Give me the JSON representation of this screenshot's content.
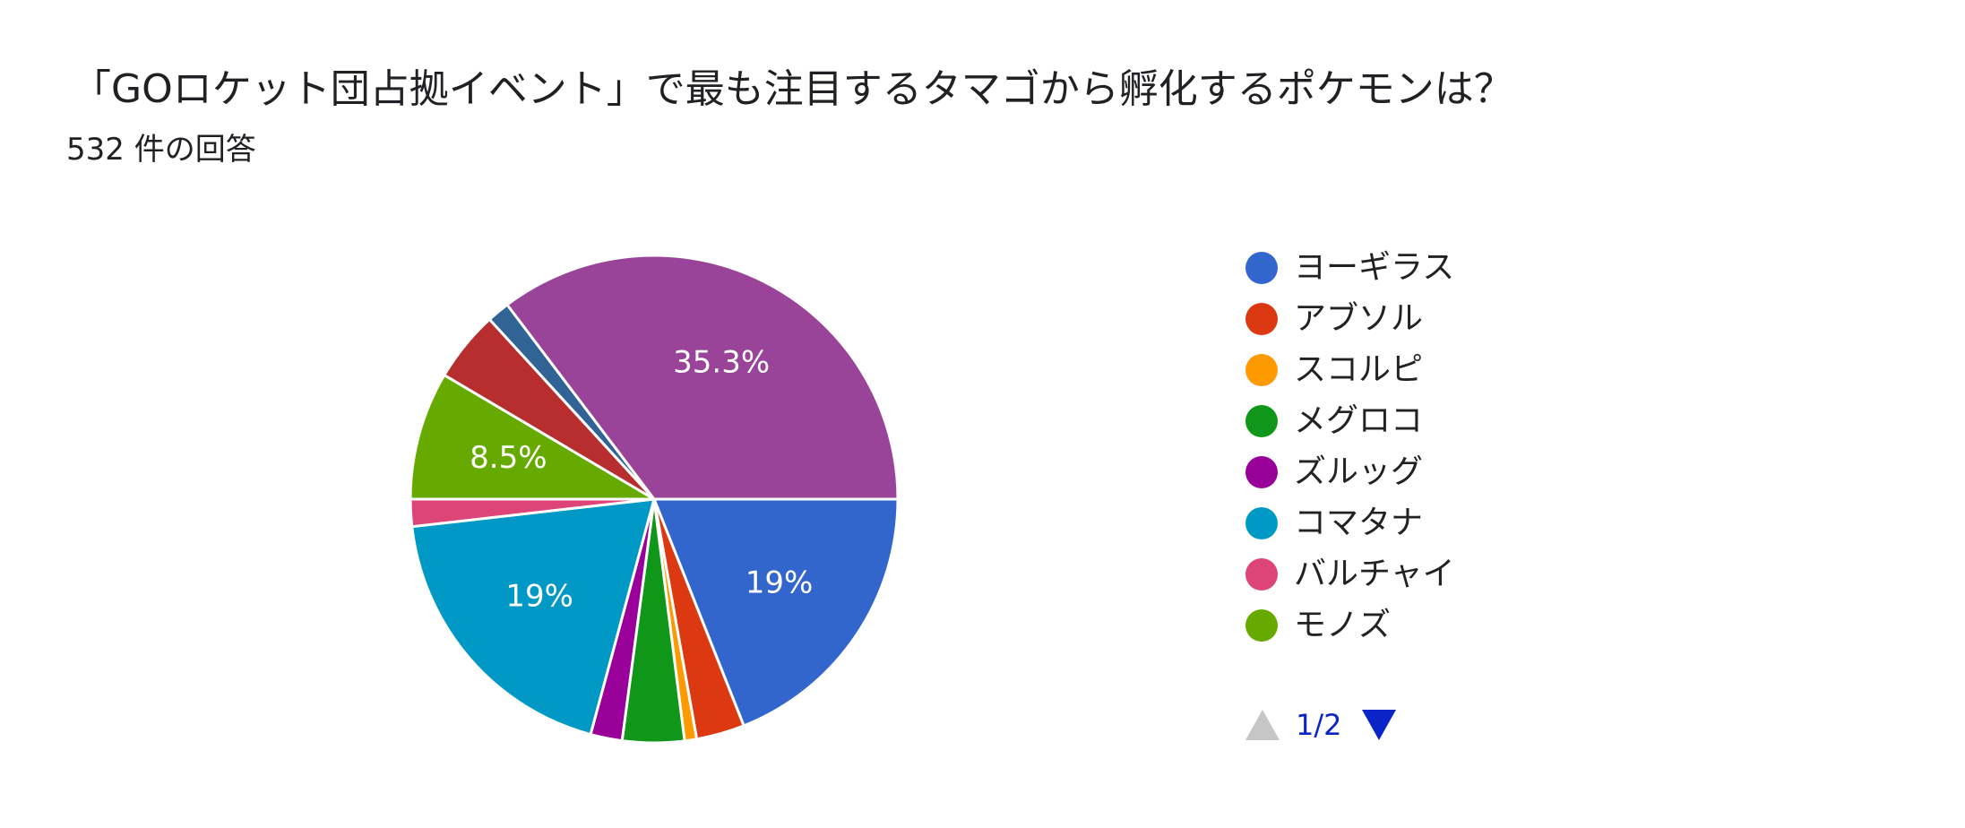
{
  "header": {
    "title": "「GOロケット団占拠イベント」で最も注目するタマゴから孵化するポケモンは？",
    "response_count": "532 件の回答"
  },
  "chart_data": {
    "type": "pie",
    "title": "「GOロケット団占拠イベント」で最も注目するタマゴから孵化するポケモンは？",
    "subtitle": "532 件の回答",
    "legend_position": "right",
    "legend_page": "1/2",
    "slices": [
      {
        "name": "ヨーギラス",
        "percent": 19.0,
        "label": "19%",
        "color": "#3366cc"
      },
      {
        "name": "アブソル",
        "percent": 3.2,
        "label": "",
        "color": "#dc3912"
      },
      {
        "name": "スコルピ",
        "percent": 0.8,
        "label": "",
        "color": "#ff9900"
      },
      {
        "name": "メグロコ",
        "percent": 4.1,
        "label": "",
        "color": "#109618"
      },
      {
        "name": "ズルッグ",
        "percent": 2.1,
        "label": "",
        "color": "#990099"
      },
      {
        "name": "コマタナ",
        "percent": 19.0,
        "label": "19%",
        "color": "#0099c6"
      },
      {
        "name": "バルチャイ",
        "percent": 1.8,
        "label": "",
        "color": "#dd4477"
      },
      {
        "name": "モノズ",
        "percent": 8.5,
        "label": "8.5%",
        "color": "#66aa00"
      },
      {
        "name": "",
        "percent": 4.7,
        "label": "",
        "color": "#b82e2e"
      },
      {
        "name": "",
        "percent": 1.5,
        "label": "",
        "color": "#316395"
      },
      {
        "name": "",
        "percent": 35.3,
        "label": "35.3%",
        "color": "#994499"
      }
    ]
  },
  "pagination": {
    "current": "1/2",
    "prev_enabled": false,
    "next_enabled": true
  }
}
